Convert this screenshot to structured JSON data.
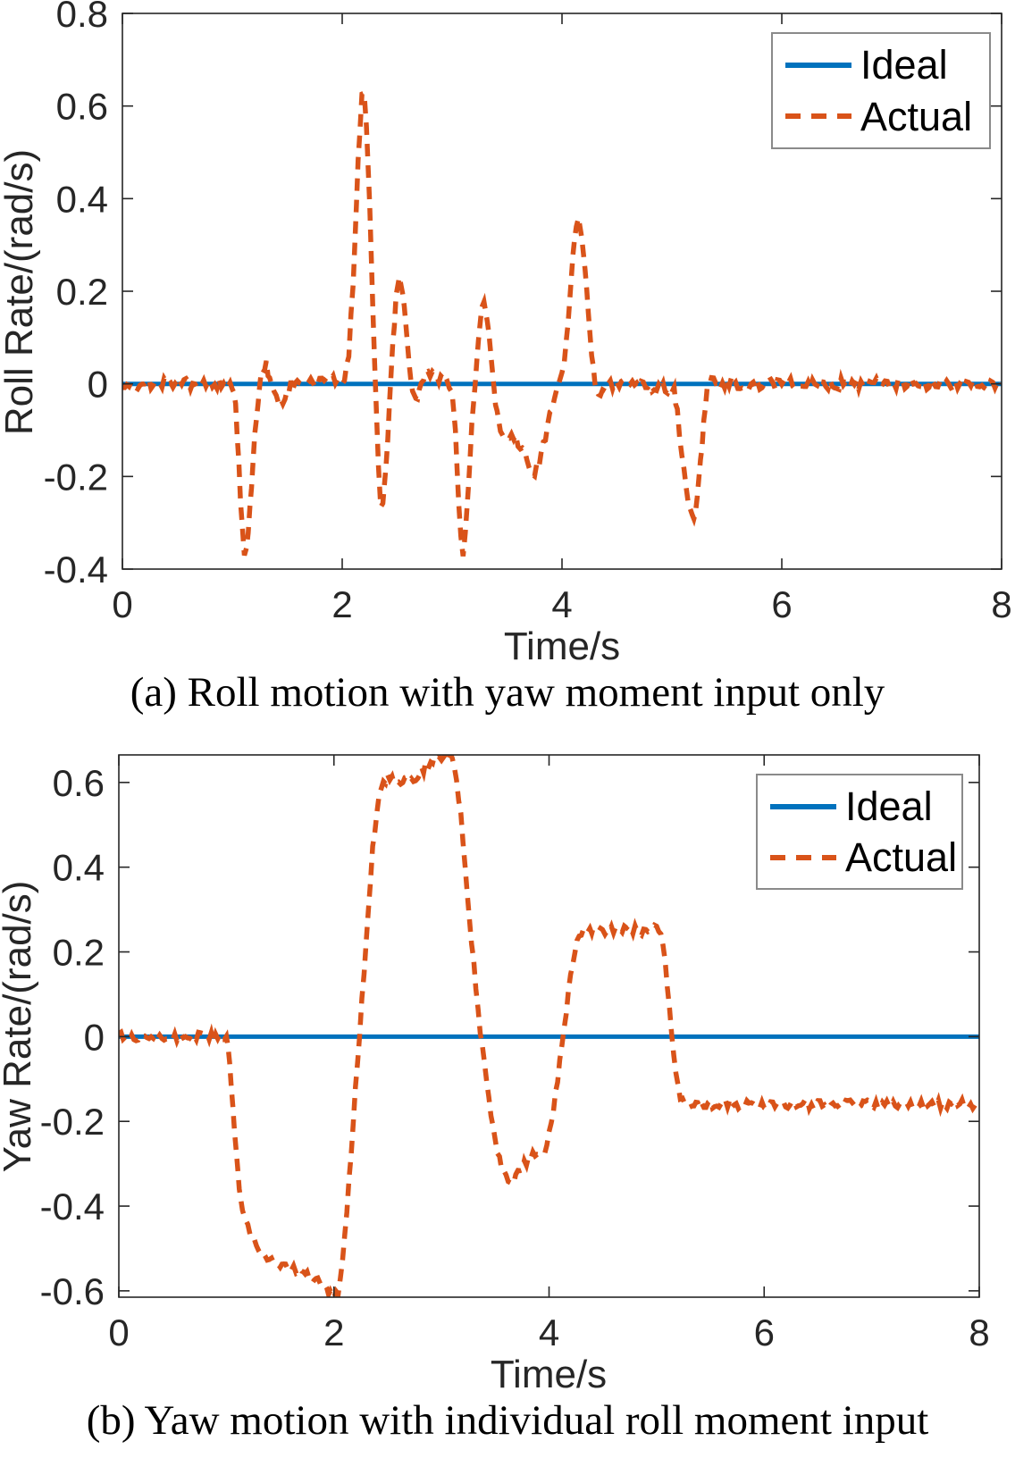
{
  "figure": {
    "background": "#ffffff",
    "ideal_color": "#0072BD",
    "actual_color": "#D95319",
    "axis_color": "#262626",
    "legend_border_color": "#8a8a8a"
  },
  "chart_data": [
    {
      "type": "line",
      "caption": "(a) Roll motion with yaw moment input only",
      "xlabel": "Time/s",
      "ylabel": "Roll Rate/(rad/s)",
      "xlim": [
        0,
        8
      ],
      "ylim": [
        -0.4,
        0.8
      ],
      "xticks": [
        0,
        2,
        4,
        6,
        8
      ],
      "yticks": [
        0.8,
        0.6,
        0.4,
        0.2,
        0,
        -0.2,
        -0.4
      ],
      "xtick_labels": [
        "0",
        "2",
        "4",
        "6",
        "8"
      ],
      "ytick_labels": [
        "0.8",
        "0.6",
        "0.4",
        "0.2",
        "0",
        "-0.2",
        "-0.4"
      ],
      "grid": false,
      "legend_position": "top-right",
      "series": [
        {
          "name": "Ideal",
          "style": "solid",
          "color": "#0072BD",
          "noise_amplitude": 0,
          "points": [
            [
              0,
              0
            ],
            [
              8,
              0
            ]
          ]
        },
        {
          "name": "Actual",
          "style": "dashed",
          "color": "#D95319",
          "noise_amplitude": 0.012,
          "points": [
            [
              0,
              0
            ],
            [
              1,
              0
            ],
            [
              1.03,
              -0.05
            ],
            [
              1.06,
              -0.18
            ],
            [
              1.09,
              -0.31
            ],
            [
              1.11,
              -0.365
            ],
            [
              1.13,
              -0.35
            ],
            [
              1.16,
              -0.27
            ],
            [
              1.19,
              -0.16
            ],
            [
              1.22,
              -0.07
            ],
            [
              1.25,
              0
            ],
            [
              1.28,
              0.035
            ],
            [
              1.31,
              0.04
            ],
            [
              1.34,
              0.015
            ],
            [
              1.38,
              -0.025
            ],
            [
              1.42,
              -0.045
            ],
            [
              1.46,
              -0.035
            ],
            [
              1.5,
              -0.01
            ],
            [
              1.55,
              0
            ],
            [
              2.02,
              0.01
            ],
            [
              2.06,
              0.07
            ],
            [
              2.1,
              0.22
            ],
            [
              2.13,
              0.4
            ],
            [
              2.16,
              0.55
            ],
            [
              2.18,
              0.615
            ],
            [
              2.2,
              0.62
            ],
            [
              2.22,
              0.55
            ],
            [
              2.25,
              0.38
            ],
            [
              2.28,
              0.16
            ],
            [
              2.31,
              -0.05
            ],
            [
              2.33,
              -0.18
            ],
            [
              2.35,
              -0.255
            ],
            [
              2.37,
              -0.26
            ],
            [
              2.4,
              -0.17
            ],
            [
              2.43,
              -0.05
            ],
            [
              2.46,
              0.08
            ],
            [
              2.49,
              0.18
            ],
            [
              2.52,
              0.22
            ],
            [
              2.55,
              0.2
            ],
            [
              2.58,
              0.13
            ],
            [
              2.61,
              0.04
            ],
            [
              2.64,
              -0.02
            ],
            [
              2.67,
              -0.035
            ],
            [
              2.7,
              -0.01
            ],
            [
              2.74,
              0.015
            ],
            [
              2.8,
              0.02
            ],
            [
              2.88,
              0.015
            ],
            [
              2.95,
              0.005
            ],
            [
              3,
              -0.02
            ],
            [
              3.03,
              -0.1
            ],
            [
              3.06,
              -0.25
            ],
            [
              3.08,
              -0.34
            ],
            [
              3.1,
              -0.37
            ],
            [
              3.12,
              -0.33
            ],
            [
              3.15,
              -0.22
            ],
            [
              3.18,
              -0.09
            ],
            [
              3.21,
              0.01
            ],
            [
              3.24,
              0.1
            ],
            [
              3.27,
              0.16
            ],
            [
              3.29,
              0.18
            ],
            [
              3.32,
              0.145
            ],
            [
              3.35,
              0.07
            ],
            [
              3.38,
              -0.01
            ],
            [
              3.41,
              -0.07
            ],
            [
              3.44,
              -0.1
            ],
            [
              3.48,
              -0.115
            ],
            [
              3.52,
              -0.12
            ],
            [
              3.56,
              -0.11
            ],
            [
              3.6,
              -0.13
            ],
            [
              3.64,
              -0.14
            ],
            [
              3.68,
              -0.165
            ],
            [
              3.72,
              -0.185
            ],
            [
              3.75,
              -0.19
            ],
            [
              3.79,
              -0.17
            ],
            [
              3.83,
              -0.135
            ],
            [
              3.87,
              -0.09
            ],
            [
              3.91,
              -0.045
            ],
            [
              3.95,
              -0.01
            ],
            [
              4,
              0.02
            ],
            [
              4.04,
              0.09
            ],
            [
              4.07,
              0.19
            ],
            [
              4.1,
              0.29
            ],
            [
              4.13,
              0.345
            ],
            [
              4.15,
              0.35
            ],
            [
              4.18,
              0.315
            ],
            [
              4.21,
              0.24
            ],
            [
              4.24,
              0.15
            ],
            [
              4.27,
              0.07
            ],
            [
              4.3,
              0.01
            ],
            [
              4.33,
              -0.025
            ],
            [
              4.37,
              -0.02
            ],
            [
              4.42,
              0
            ],
            [
              5.02,
              -0.01
            ],
            [
              5.05,
              -0.06
            ],
            [
              5.09,
              -0.15
            ],
            [
              5.13,
              -0.23
            ],
            [
              5.17,
              -0.28
            ],
            [
              5.2,
              -0.29
            ],
            [
              5.23,
              -0.25
            ],
            [
              5.26,
              -0.17
            ],
            [
              5.29,
              -0.08
            ],
            [
              5.32,
              -0.02
            ],
            [
              5.36,
              0.005
            ],
            [
              5.42,
              0
            ],
            [
              8,
              0
            ]
          ]
        }
      ]
    },
    {
      "type": "line",
      "caption": "(b) Yaw motion with individual roll moment input",
      "xlabel": "Time/s",
      "ylabel": "Yaw Rate/(rad/s)",
      "xlim": [
        0,
        8
      ],
      "ylim": [
        -0.615,
        0.665
      ],
      "xticks": [
        0,
        2,
        4,
        6,
        8
      ],
      "yticks": [
        0.6,
        0.4,
        0.2,
        0,
        -0.2,
        -0.4,
        -0.6
      ],
      "xtick_labels": [
        "0",
        "2",
        "4",
        "6",
        "8"
      ],
      "ytick_labels": [
        "0.6",
        "0.4",
        "0.2",
        "0",
        "-0.2",
        "-0.4",
        "-0.6"
      ],
      "grid": false,
      "legend_position": "top-right",
      "series": [
        {
          "name": "Ideal",
          "style": "solid",
          "color": "#0072BD",
          "noise_amplitude": 0,
          "points": [
            [
              0,
              0
            ],
            [
              8,
              0
            ]
          ]
        },
        {
          "name": "Actual",
          "style": "dashed",
          "color": "#D95319",
          "noise_amplitude": 0.011,
          "points": [
            [
              0,
              0
            ],
            [
              1,
              0
            ],
            [
              1.03,
              -0.06
            ],
            [
              1.06,
              -0.16
            ],
            [
              1.09,
              -0.27
            ],
            [
              1.12,
              -0.35
            ],
            [
              1.15,
              -0.41
            ],
            [
              1.18,
              -0.44
            ],
            [
              1.22,
              -0.465
            ],
            [
              1.26,
              -0.48
            ],
            [
              1.3,
              -0.5
            ],
            [
              1.34,
              -0.515
            ],
            [
              1.38,
              -0.525
            ],
            [
              1.42,
              -0.52
            ],
            [
              1.46,
              -0.53
            ],
            [
              1.5,
              -0.535
            ],
            [
              1.55,
              -0.54
            ],
            [
              1.6,
              -0.55
            ],
            [
              1.65,
              -0.55
            ],
            [
              1.7,
              -0.555
            ],
            [
              1.75,
              -0.565
            ],
            [
              1.8,
              -0.575
            ],
            [
              1.85,
              -0.58
            ],
            [
              1.9,
              -0.59
            ],
            [
              1.95,
              -0.6
            ],
            [
              2,
              -0.61
            ],
            [
              2.04,
              -0.6
            ],
            [
              2.08,
              -0.52
            ],
            [
              2.12,
              -0.41
            ],
            [
              2.16,
              -0.28
            ],
            [
              2.2,
              -0.13
            ],
            [
              2.24,
              0.01
            ],
            [
              2.28,
              0.15
            ],
            [
              2.32,
              0.3
            ],
            [
              2.36,
              0.44
            ],
            [
              2.4,
              0.54
            ],
            [
              2.44,
              0.59
            ],
            [
              2.48,
              0.605
            ],
            [
              2.52,
              0.615
            ],
            [
              2.56,
              0.6
            ],
            [
              2.6,
              0.595
            ],
            [
              2.64,
              0.6
            ],
            [
              2.68,
              0.605
            ],
            [
              2.72,
              0.61
            ],
            [
              2.76,
              0.615
            ],
            [
              2.8,
              0.625
            ],
            [
              2.85,
              0.635
            ],
            [
              2.9,
              0.645
            ],
            [
              2.95,
              0.655
            ],
            [
              3,
              0.66
            ],
            [
              3.05,
              0.665
            ],
            [
              3.1,
              0.655
            ],
            [
              3.14,
              0.61
            ],
            [
              3.18,
              0.52
            ],
            [
              3.22,
              0.4
            ],
            [
              3.26,
              0.28
            ],
            [
              3.3,
              0.17
            ],
            [
              3.34,
              0.06
            ],
            [
              3.38,
              -0.03
            ],
            [
              3.42,
              -0.11
            ],
            [
              3.46,
              -0.18
            ],
            [
              3.5,
              -0.245
            ],
            [
              3.54,
              -0.29
            ],
            [
              3.58,
              -0.32
            ],
            [
              3.62,
              -0.34
            ],
            [
              3.65,
              -0.345
            ],
            [
              3.69,
              -0.335
            ],
            [
              3.73,
              -0.315
            ],
            [
              3.77,
              -0.3
            ],
            [
              3.81,
              -0.29
            ],
            [
              3.85,
              -0.28
            ],
            [
              3.89,
              -0.27
            ],
            [
              3.93,
              -0.275
            ],
            [
              3.96,
              -0.265
            ],
            [
              4,
              -0.23
            ],
            [
              4.04,
              -0.17
            ],
            [
              4.08,
              -0.1
            ],
            [
              4.12,
              -0.02
            ],
            [
              4.16,
              0.06
            ],
            [
              4.2,
              0.14
            ],
            [
              4.24,
              0.2
            ],
            [
              4.28,
              0.24
            ],
            [
              4.32,
              0.255
            ],
            [
              4.38,
              0.25
            ],
            [
              4.45,
              0.255
            ],
            [
              4.52,
              0.25
            ],
            [
              4.6,
              0.255
            ],
            [
              4.68,
              0.25
            ],
            [
              4.76,
              0.255
            ],
            [
              4.84,
              0.25
            ],
            [
              4.92,
              0.25
            ],
            [
              5,
              0.255
            ],
            [
              5.04,
              0.245
            ],
            [
              5.08,
              0.17
            ],
            [
              5.12,
              0.06
            ],
            [
              5.16,
              -0.05
            ],
            [
              5.2,
              -0.12
            ],
            [
              5.24,
              -0.155
            ],
            [
              5.28,
              -0.17
            ],
            [
              5.33,
              -0.165
            ],
            [
              5.4,
              -0.16
            ],
            [
              8,
              -0.16
            ]
          ]
        }
      ]
    }
  ]
}
